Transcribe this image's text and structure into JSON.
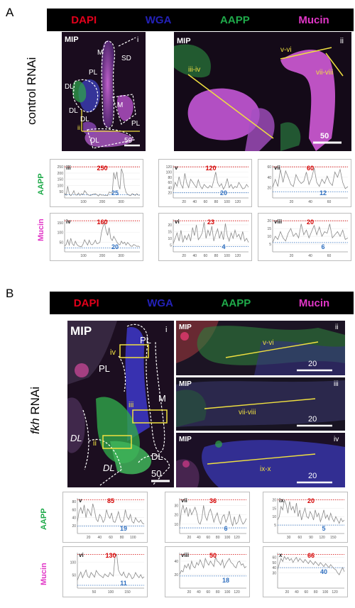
{
  "colors": {
    "dapi": "#e3001b",
    "wga": "#2321b8",
    "aapp": "#1faa4a",
    "mucin": "#e136c7",
    "peak": "#d40000",
    "base": "#2f6fbf",
    "trace": "#8a8a8a"
  },
  "panelA": {
    "letter": "A",
    "channels": [
      "DAPI",
      "WGA",
      "AAPP",
      "Mucin"
    ],
    "condition": "control RNAi",
    "img_i": {
      "mip": "MIP",
      "roman": "i",
      "scale": "50",
      "labels": [
        "M",
        "SD",
        "PL",
        "DL",
        "DL",
        "DL",
        "M",
        "PL",
        "DL",
        "ii"
      ]
    },
    "img_ii": {
      "mip": "MIP",
      "roman": "ii",
      "scale": "50",
      "lines": [
        "v-vi",
        "vii-viii",
        "iii-iv"
      ]
    },
    "plot_rows": [
      "AAPP",
      "Mucin"
    ],
    "plots": [
      {
        "roman": "iii",
        "peak": "250",
        "base": "25",
        "yticks": [
          "250",
          "200",
          "150",
          "100",
          "50"
        ],
        "xticks": [
          "100",
          "200",
          "300"
        ],
        "values": [
          40,
          22,
          95,
          34,
          18,
          30,
          58,
          25,
          22,
          40,
          20,
          35,
          26,
          58,
          44,
          26,
          22,
          20,
          28,
          30,
          34,
          25,
          16,
          30,
          22,
          24,
          20,
          22,
          18,
          48,
          42,
          38,
          205,
          150,
          210,
          110,
          70,
          235,
          195,
          90,
          45,
          30,
          22,
          18,
          35,
          28,
          20,
          34,
          22,
          22
        ]
      },
      {
        "roman": "v",
        "peak": "120",
        "base": "20",
        "yticks": [
          "120",
          "100",
          "80",
          "60",
          "40",
          "20"
        ],
        "xticks": [
          "20",
          "40",
          "60",
          "80",
          "100",
          "120"
        ],
        "values": [
          30,
          60,
          45,
          82,
          52,
          38,
          95,
          58,
          40,
          72,
          62,
          50,
          40,
          70,
          46,
          35,
          52,
          44,
          38,
          48,
          40,
          68,
          100,
          58,
          44,
          55,
          34,
          48,
          75,
          40,
          52,
          36,
          45,
          40,
          60,
          48,
          35,
          38,
          52,
          42
        ]
      },
      {
        "roman": "vii",
        "peak": "60",
        "base": "12",
        "yticks": [
          "60",
          "40",
          "20"
        ],
        "xticks": [
          "20",
          "40",
          "60"
        ],
        "values": [
          20,
          36,
          22,
          55,
          30,
          52,
          40,
          26,
          22,
          45,
          34,
          28,
          32,
          50,
          26,
          38,
          58,
          30,
          22,
          36,
          28,
          42,
          30,
          24,
          50,
          40,
          55,
          30,
          18,
          22
        ]
      },
      {
        "roman": "iv",
        "peak": "160",
        "base": "20",
        "yticks": [
          "150",
          "100",
          "50"
        ],
        "xticks": [
          "100",
          "200",
          "300"
        ],
        "values": [
          30,
          38,
          62,
          35,
          70,
          42,
          32,
          55,
          38,
          30,
          28,
          26,
          40,
          62,
          48,
          35,
          60,
          40,
          36,
          45,
          60,
          42,
          44,
          50,
          100,
          130,
          150,
          110,
          85,
          125,
          70,
          58,
          80,
          66,
          50,
          40,
          36,
          55,
          42,
          50,
          35,
          48,
          40,
          30,
          28,
          38,
          34,
          28,
          30,
          25
        ]
      },
      {
        "roman": "vi",
        "peak": "23",
        "base": "4",
        "yticks": [
          "25",
          "20",
          "15",
          "10",
          "5"
        ],
        "xticks": [
          "20",
          "40",
          "60",
          "80",
          "100",
          "120"
        ],
        "values": [
          6,
          10,
          14,
          8,
          16,
          7,
          12,
          9,
          13,
          8,
          18,
          12,
          20,
          9,
          11,
          14,
          22,
          10,
          16,
          12,
          19,
          8,
          13,
          17,
          10,
          15,
          9,
          21,
          12,
          8,
          14,
          10,
          16,
          11,
          13,
          9,
          15,
          8,
          10,
          7
        ]
      },
      {
        "roman": "viii",
        "peak": "20",
        "base": "6",
        "yticks": [
          "20",
          "15",
          "10",
          "5"
        ],
        "xticks": [
          "20",
          "40",
          "60"
        ],
        "values": [
          6,
          10,
          8,
          13,
          9,
          7,
          12,
          15,
          10,
          12,
          9,
          18,
          11,
          14,
          9,
          13,
          17,
          11,
          16,
          10,
          13,
          12,
          18,
          9,
          11,
          13,
          10,
          14,
          8,
          9
        ]
      }
    ]
  },
  "panelB": {
    "letter": "B",
    "channels": [
      "DAPI",
      "WGA",
      "AAPP",
      "Mucin"
    ],
    "condition_italic": "fkh",
    "condition_rest": " RNAi",
    "img_i": {
      "mip": "MIP",
      "roman": "i",
      "scale": "50",
      "labels": [
        "PL",
        "PL",
        "M",
        "DL",
        "DL",
        "DL"
      ],
      "boxes": [
        "iv",
        "iii",
        "ii"
      ]
    },
    "img_ii": {
      "mip": "MIP",
      "roman": "ii",
      "scale": "20",
      "line": "v-vi"
    },
    "img_iii": {
      "mip": "MIP",
      "roman": "iii",
      "scale": "20",
      "line": "vii-viii"
    },
    "img_iv": {
      "mip": "MIP",
      "roman": "iv",
      "scale": "20",
      "line": "ix-x"
    },
    "plot_rows": [
      "AAPP",
      "Mucin"
    ],
    "plots": [
      {
        "roman": "v",
        "peak": "85",
        "base": "19",
        "yticks": [
          "80",
          "60",
          "40",
          "20"
        ],
        "xticks": [
          "20",
          "40",
          "60",
          "80",
          "100"
        ],
        "values": [
          30,
          55,
          65,
          50,
          72,
          40,
          62,
          55,
          45,
          75,
          58,
          36,
          30,
          48,
          42,
          28,
          35,
          60,
          45,
          38,
          52,
          30,
          28,
          40,
          55,
          36,
          28,
          33,
          60,
          42,
          35,
          48,
          30,
          26,
          40,
          32,
          28,
          34,
          26,
          24
        ]
      },
      {
        "roman": "vii",
        "peak": "36",
        "base": "6",
        "yticks": [
          "30",
          "20",
          "10"
        ],
        "xticks": [
          "20",
          "40",
          "60",
          "80",
          "100",
          "120"
        ],
        "values": [
          8,
          24,
          30,
          22,
          28,
          18,
          26,
          20,
          24,
          28,
          22,
          12,
          10,
          16,
          30,
          18,
          14,
          22,
          26,
          20,
          12,
          18,
          22,
          14,
          10,
          18,
          20,
          12,
          16,
          24,
          14,
          8,
          18,
          10,
          12,
          20,
          14,
          10,
          12,
          16
        ]
      },
      {
        "roman": "ix",
        "peak": "20",
        "base": "5",
        "yticks": [
          "20",
          "15",
          "10",
          "5"
        ],
        "xticks": [
          "30",
          "60",
          "90",
          "120",
          "150"
        ],
        "values": [
          8,
          10,
          16,
          14,
          20,
          17,
          12,
          19,
          14,
          16,
          12,
          18,
          10,
          14,
          8,
          12,
          15,
          10,
          9,
          13,
          11,
          8,
          14,
          10,
          12,
          7,
          10,
          14,
          9,
          11,
          8,
          12,
          9,
          7,
          10,
          8,
          6,
          9,
          7,
          8
        ]
      },
      {
        "roman": "vi",
        "peak": "130",
        "base": "11",
        "yticks": [
          "100",
          "50"
        ],
        "xticks": [
          "50",
          "100",
          "150"
        ],
        "values": [
          30,
          48,
          62,
          40,
          55,
          70,
          46,
          40,
          60,
          52,
          42,
          68,
          58,
          50,
          46,
          40,
          55,
          48,
          44,
          60,
          52,
          46,
          120,
          130,
          70,
          55,
          48,
          62,
          44,
          40,
          58,
          50,
          36,
          42,
          60,
          48,
          40,
          52,
          38,
          44
        ]
      },
      {
        "roman": "viii",
        "peak": "50",
        "base": "18",
        "yticks": [
          "40",
          "20"
        ],
        "xticks": [
          "20",
          "40",
          "60",
          "80",
          "100",
          "120"
        ],
        "values": [
          20,
          26,
          24,
          34,
          30,
          36,
          28,
          40,
          32,
          30,
          38,
          34,
          42,
          36,
          30,
          44,
          38,
          34,
          40,
          36,
          32,
          46,
          40,
          38,
          34,
          42,
          30,
          36,
          40,
          44,
          38,
          36,
          32,
          30,
          38,
          40,
          34,
          36,
          30,
          32
        ]
      },
      {
        "roman": "x",
        "peak": "66",
        "base": "40",
        "yticks": [
          "60",
          "50",
          "40",
          "30"
        ],
        "xticks": [
          "20",
          "40",
          "60",
          "80",
          "100",
          "120"
        ],
        "values": [
          36,
          48,
          58,
          52,
          62,
          56,
          60,
          54,
          58,
          50,
          56,
          60,
          52,
          58,
          54,
          50,
          56,
          52,
          48,
          54,
          50,
          46,
          52,
          48,
          44,
          50,
          46,
          42,
          48,
          44,
          40,
          46,
          42,
          38,
          36,
          30,
          26,
          34,
          40,
          32
        ]
      }
    ]
  }
}
